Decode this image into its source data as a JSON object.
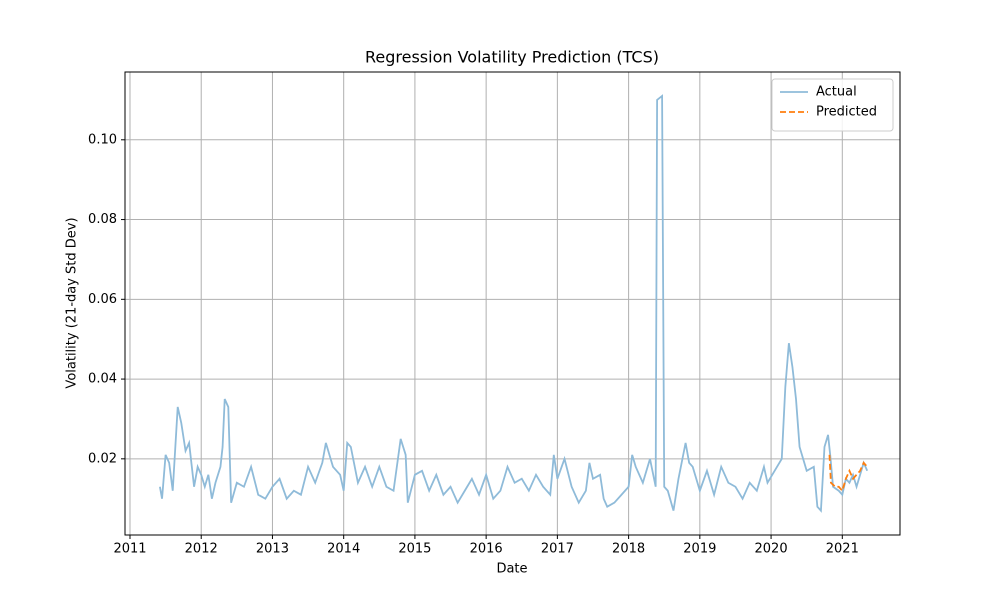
{
  "chart_data": {
    "type": "line",
    "title": "Regression Volatility Prediction (TCS)",
    "xlabel": "Date",
    "ylabel": "Volatility (21-day Std Dev)",
    "xlim": [
      2010.93,
      2021.81
    ],
    "xticks": [
      2011,
      2012,
      2013,
      2014,
      2015,
      2016,
      2017,
      2018,
      2019,
      2020,
      2021
    ],
    "ylim": [
      0.0009,
      0.117
    ],
    "yticks": [
      0.02,
      0.04,
      0.06,
      0.08,
      {
        "value": 0.1,
        "label": "0.10"
      }
    ],
    "grid": true,
    "legend": "upper right",
    "series": [
      {
        "name": "Actual",
        "color": "#8fbbd9",
        "style": "solid",
        "x": [
          2011.42,
          2011.45,
          2011.5,
          2011.55,
          2011.6,
          2011.67,
          2011.72,
          2011.78,
          2011.83,
          2011.9,
          2011.95,
          2012.0,
          2012.05,
          2012.1,
          2012.15,
          2012.2,
          2012.27,
          2012.3,
          2012.33,
          2012.38,
          2012.42,
          2012.5,
          2012.6,
          2012.7,
          2012.8,
          2012.9,
          2013.0,
          2013.1,
          2013.2,
          2013.3,
          2013.4,
          2013.5,
          2013.6,
          2013.7,
          2013.75,
          2013.85,
          2013.95,
          2014.0,
          2014.05,
          2014.1,
          2014.2,
          2014.3,
          2014.4,
          2014.5,
          2014.6,
          2014.7,
          2014.8,
          2014.87,
          2014.9,
          2015.0,
          2015.1,
          2015.2,
          2015.3,
          2015.4,
          2015.5,
          2015.6,
          2015.7,
          2015.8,
          2015.9,
          2016.0,
          2016.1,
          2016.2,
          2016.3,
          2016.4,
          2016.5,
          2016.6,
          2016.7,
          2016.8,
          2016.9,
          2016.95,
          2017.0,
          2017.1,
          2017.2,
          2017.3,
          2017.4,
          2017.45,
          2017.5,
          2017.6,
          2017.65,
          2017.7,
          2017.8,
          2017.9,
          2018.0,
          2018.05,
          2018.1,
          2018.2,
          2018.3,
          2018.38,
          2018.4,
          2018.47,
          2018.5,
          2018.55,
          2018.63,
          2018.7,
          2018.8,
          2018.85,
          2018.9,
          2019.0,
          2019.1,
          2019.2,
          2019.3,
          2019.4,
          2019.5,
          2019.6,
          2019.7,
          2019.8,
          2019.9,
          2019.95,
          2020.05,
          2020.15,
          2020.2,
          2020.25,
          2020.3,
          2020.35,
          2020.4,
          2020.5,
          2020.6,
          2020.65,
          2020.7,
          2020.75,
          2020.8,
          2020.83,
          2020.87,
          2020.95,
          2021.0,
          2021.05,
          2021.1,
          2021.15,
          2021.2,
          2021.25,
          2021.3,
          2021.35
        ],
        "values": [
          0.013,
          0.01,
          0.021,
          0.019,
          0.012,
          0.033,
          0.029,
          0.022,
          0.024,
          0.013,
          0.018,
          0.016,
          0.013,
          0.016,
          0.01,
          0.014,
          0.018,
          0.023,
          0.035,
          0.033,
          0.009,
          0.014,
          0.013,
          0.018,
          0.011,
          0.01,
          0.013,
          0.015,
          0.01,
          0.012,
          0.011,
          0.018,
          0.014,
          0.019,
          0.024,
          0.018,
          0.016,
          0.012,
          0.024,
          0.023,
          0.014,
          0.018,
          0.013,
          0.018,
          0.013,
          0.012,
          0.025,
          0.021,
          0.009,
          0.016,
          0.017,
          0.012,
          0.016,
          0.011,
          0.013,
          0.009,
          0.012,
          0.015,
          0.011,
          0.016,
          0.01,
          0.012,
          0.018,
          0.014,
          0.015,
          0.012,
          0.016,
          0.013,
          0.011,
          0.021,
          0.015,
          0.02,
          0.013,
          0.009,
          0.012,
          0.019,
          0.015,
          0.016,
          0.01,
          0.008,
          0.009,
          0.011,
          0.013,
          0.021,
          0.018,
          0.014,
          0.02,
          0.013,
          0.11,
          0.111,
          0.013,
          0.012,
          0.007,
          0.015,
          0.024,
          0.019,
          0.018,
          0.012,
          0.017,
          0.011,
          0.018,
          0.014,
          0.013,
          0.01,
          0.014,
          0.012,
          0.018,
          0.014,
          0.017,
          0.02,
          0.038,
          0.049,
          0.043,
          0.035,
          0.023,
          0.017,
          0.018,
          0.008,
          0.007,
          0.023,
          0.026,
          0.021,
          0.013,
          0.012,
          0.011,
          0.015,
          0.014,
          0.016,
          0.013,
          0.016,
          0.019,
          0.017
        ]
      },
      {
        "name": "Predicted",
        "color": "#ff7f0e",
        "style": "dashed",
        "x": [
          2020.82,
          2020.84,
          2020.9,
          2020.95,
          2021.0,
          2021.05,
          2021.1,
          2021.15,
          2021.2,
          2021.25,
          2021.3,
          2021.35
        ],
        "values": [
          0.021,
          0.014,
          0.013,
          0.013,
          0.012,
          0.015,
          0.017,
          0.015,
          0.016,
          0.017,
          0.019,
          0.018
        ]
      }
    ]
  }
}
